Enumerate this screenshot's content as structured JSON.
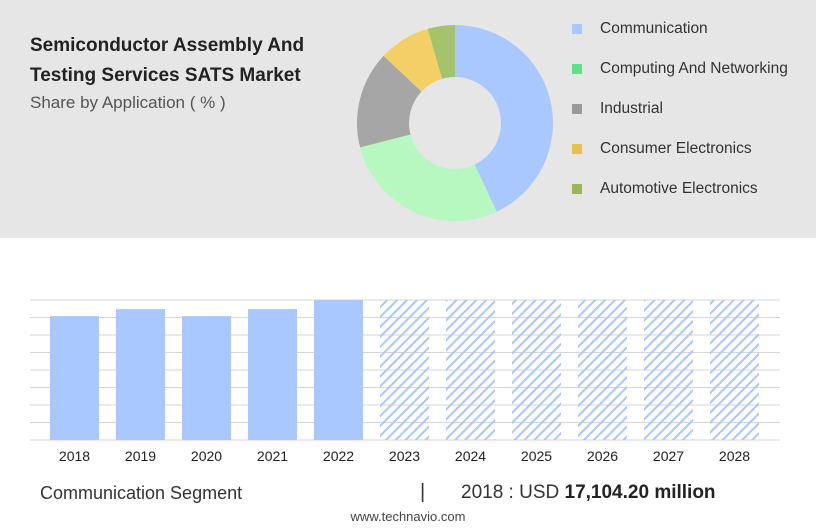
{
  "header": {
    "title": "Semiconductor Assembly And Testing Services SATS Market",
    "subtitle": "Share by Application ( % )"
  },
  "chart_data": [
    {
      "type": "pie",
      "donut": true,
      "labels": [
        "Communication",
        "Computing And Networking",
        "Industrial",
        "Consumer Electronics",
        "Automotive Electronics"
      ],
      "values": [
        43,
        28,
        16,
        8.5,
        4.5
      ],
      "colors": [
        "#a9c8ff",
        "#b7f7c0",
        "#a6a6a6",
        "#f4cf66",
        "#a3c46a"
      ],
      "legend_swatch_colors": [
        "#a9c8ff",
        "#5de28b",
        "#9a9a9a",
        "#e8c14b",
        "#9ab85a"
      ],
      "legend_position": "right"
    },
    {
      "type": "bar",
      "categories": [
        "2018",
        "2019",
        "2020",
        "2021",
        "2022",
        "2023",
        "2024",
        "2025",
        "2026",
        "2027",
        "2028"
      ],
      "values": [
        0.885,
        0.935,
        0.885,
        0.935,
        1.0,
        1.0,
        1.0,
        1.0,
        1.0,
        1.0,
        1.0
      ],
      "forecast_from": "2023",
      "bar_color": "#a9c8ff",
      "hatch_color": "#a9c8ff",
      "grid": true,
      "ylim": [
        0,
        1
      ]
    }
  ],
  "footer": {
    "segment_label": "Communication Segment",
    "separator": "|",
    "value_prefix": "2018 : USD",
    "value_text": "17,104.20 million",
    "source": "www.technavio.com"
  }
}
